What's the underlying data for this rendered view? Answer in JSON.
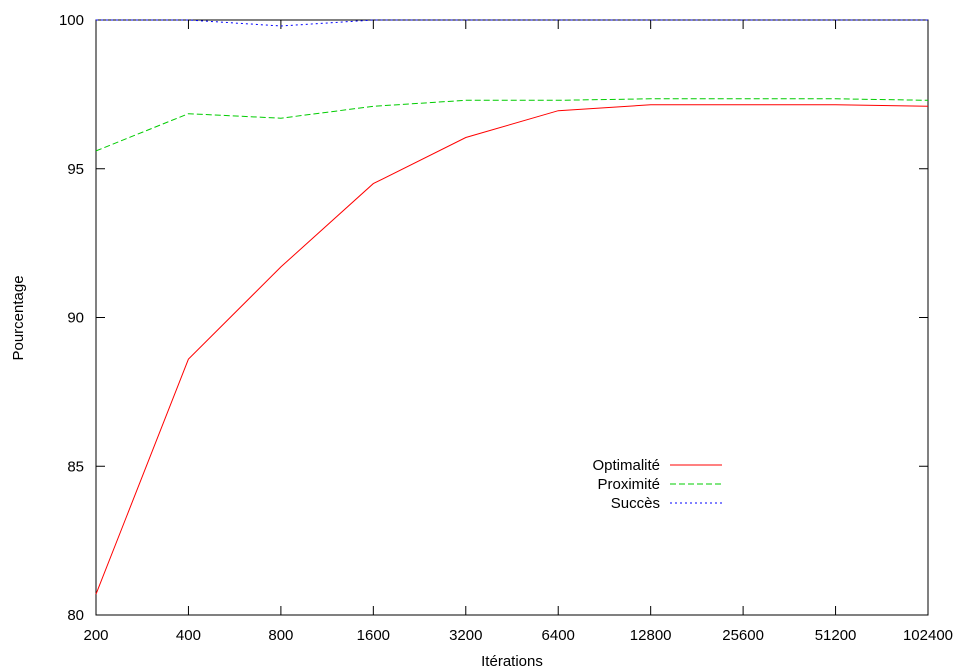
{
  "chart_data": {
    "type": "line",
    "xlabel": "Itérations",
    "ylabel": "Pourcentage",
    "x_scale": "log2",
    "categories": [
      "200",
      "400",
      "800",
      "1600",
      "3200",
      "6400",
      "12800",
      "25600",
      "51200",
      "102400"
    ],
    "ylim": [
      80,
      100
    ],
    "yticks": [
      "80",
      "85",
      "90",
      "95",
      "100"
    ],
    "grid": false,
    "legend_position": "lower-right",
    "series": [
      {
        "name": "Optimalité",
        "color": "#ff0000",
        "dash": "solid",
        "values": [
          80.7,
          88.6,
          91.7,
          94.5,
          96.05,
          96.95,
          97.15,
          97.15,
          97.15,
          97.1
        ]
      },
      {
        "name": "Proximité",
        "color": "#00cc00",
        "dash": "dashed",
        "values": [
          95.6,
          96.85,
          96.7,
          97.1,
          97.3,
          97.3,
          97.35,
          97.35,
          97.35,
          97.3
        ]
      },
      {
        "name": "Succès",
        "color": "#0000ff",
        "dash": "dotted",
        "values": [
          100,
          100,
          99.8,
          100,
          100,
          100,
          100,
          100,
          100,
          100
        ]
      }
    ]
  }
}
